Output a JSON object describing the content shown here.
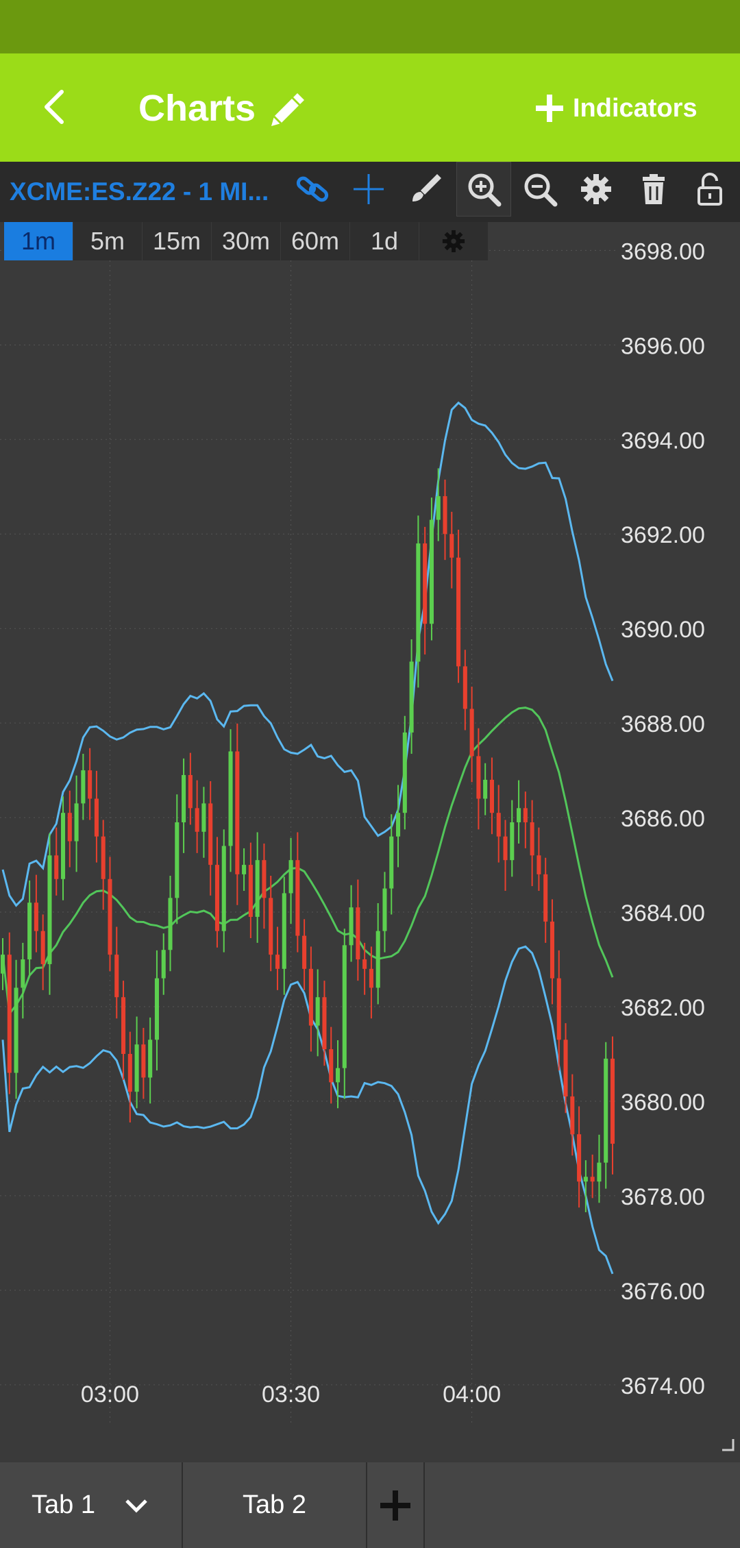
{
  "app_bar": {
    "title": "Charts",
    "indicators_label": "Indicators"
  },
  "toolbar": {
    "symbol": "XCME:ES.Z22 - 1 MI..."
  },
  "timeframes": [
    "1m",
    "5m",
    "15m",
    "30m",
    "60m",
    "1d"
  ],
  "active_timeframe": "1m",
  "tabs": [
    {
      "label": "Tab 1"
    },
    {
      "label": "Tab 2"
    }
  ],
  "colors": {
    "accent": "#9bdc18",
    "status_bar": "#6b990f",
    "up_candle": "#5ccf4f",
    "down_candle": "#e8402e",
    "band": "#5bb8f0",
    "mid_band": "#52c65a",
    "link_blue": "#1f7fe0"
  },
  "chart_data": {
    "type": "candlestick",
    "price_ticks": [
      "3698.00",
      "3696.00",
      "3694.00",
      "3692.00",
      "3690.00",
      "3688.00",
      "3686.00",
      "3684.00",
      "3682.00",
      "3680.00",
      "3678.00",
      "3676.00",
      "3674.00"
    ],
    "time_ticks": [
      "03:00",
      "03:30",
      "04:00"
    ],
    "ylim": [
      3673.2,
      3698.6
    ],
    "close_series": [
      3683.1,
      3680.6,
      3682.4,
      3683.0,
      3684.2,
      3683.6,
      3682.9,
      3685.2,
      3684.7,
      3686.1,
      3685.5,
      3686.3,
      3687.0,
      3686.4,
      3685.6,
      3684.7,
      3683.1,
      3682.2,
      3681.0,
      3680.2,
      3681.2,
      3680.5,
      3681.3,
      3682.6,
      3683.2,
      3684.3,
      3685.9,
      3686.9,
      3686.2,
      3685.7,
      3686.3,
      3685.0,
      3683.6,
      3685.4,
      3687.4,
      3684.8,
      3685.0,
      3683.9,
      3685.1,
      3684.3,
      3683.1,
      3682.8,
      3684.4,
      3685.1,
      3683.5,
      3682.8,
      3681.6,
      3682.2,
      3681.1,
      3680.4,
      3680.7,
      3683.3,
      3684.1,
      3683.0,
      3682.8,
      3682.4,
      3683.6,
      3684.5,
      3685.6,
      3686.1,
      3687.8,
      3689.3,
      3691.8,
      3690.1,
      3692.3,
      3692.8,
      3692.0,
      3691.5,
      3689.2,
      3688.3,
      3687.3,
      3686.4,
      3686.8,
      3686.1,
      3685.6,
      3685.1,
      3685.9,
      3686.2,
      3685.9,
      3685.2,
      3684.8,
      3683.8,
      3682.6,
      3681.3,
      3680.1,
      3679.3,
      3678.3,
      3678.4,
      3678.3,
      3678.7,
      3680.9,
      3679.1
    ]
  }
}
